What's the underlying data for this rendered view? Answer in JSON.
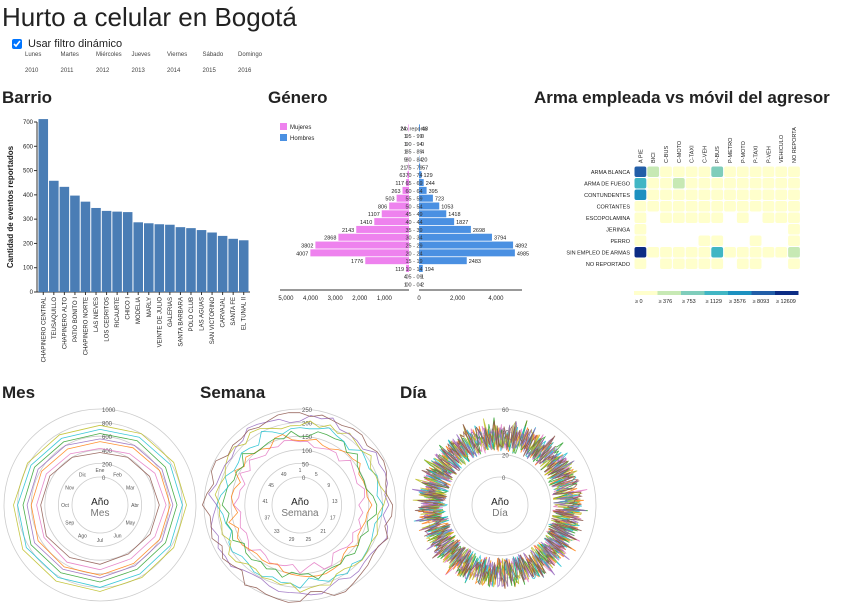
{
  "header": {
    "title": "Hurto a celular en Bogotá",
    "filter_label": "Usar filtro dinámico",
    "filter_checked": true,
    "days": [
      "Lunes",
      "Martes",
      "Miércoles",
      "Jueves",
      "Viernes",
      "Sábado",
      "Domingo"
    ],
    "years": [
      "2010",
      "2011",
      "2012",
      "2013",
      "2014",
      "2015",
      "2016"
    ]
  },
  "sections": {
    "barrio": "Barrio",
    "genero": "Género",
    "arma": "Arma empleada vs móvil del agresor",
    "mes": "Mes",
    "semana": "Semana",
    "dia": "Día"
  },
  "colors": {
    "bar": "#4a7db5",
    "women": "#ee82ee",
    "men": "#4a90e2"
  },
  "chart_data": [
    {
      "type": "bar",
      "id": "barrio",
      "ylabel": "Cantidad de eventos reportados",
      "ylim": [
        0,
        700
      ],
      "yticks": [
        0,
        100,
        200,
        300,
        400,
        500,
        600,
        700
      ],
      "categories": [
        "CHAPINERO CENTRAL",
        "TEUSAQUILLO",
        "CHAPINERO ALTO",
        "PATIO BONITO I",
        "CHAPINERO NORTE",
        "LAS NIEVES",
        "LOS CEDRITOS",
        "RICAURTE",
        "CHICO I",
        "MODELIA",
        "MARLY",
        "VEINTE DE JULIO",
        "GALERIAS",
        "SANTA BARBARA",
        "POLO CLUB",
        "LAS AGUAS",
        "SAN VICTORINO",
        "CARVAJAL",
        "SANTA FE",
        "EL TUNAL II"
      ],
      "values": [
        712,
        458,
        433,
        397,
        372,
        346,
        334,
        331,
        329,
        287,
        283,
        279,
        277,
        267,
        263,
        255,
        245,
        231,
        219,
        213
      ]
    },
    {
      "type": "bar",
      "id": "genero",
      "subtype": "population-pyramid",
      "legend": [
        "Mujeres",
        "Hombres"
      ],
      "age_groups": [
        "No reporta",
        "95 - 99",
        "90 - 94",
        "85 - 89",
        "80 - 84",
        "75 - 79",
        "70 - 74",
        "65 - 69",
        "60 - 64",
        "55 - 59",
        "50 - 54",
        "45 - 49",
        "40 - 44",
        "35 - 39",
        "30 - 34",
        "25 - 29",
        "20 - 24",
        "15 - 19",
        "10 - 14",
        "05 - 09",
        "00 - 04"
      ],
      "mujeres": [
        24,
        1,
        1,
        1,
        9,
        21,
        63,
        117,
        263,
        503,
        806,
        1107,
        1410,
        2143,
        2868,
        3802,
        4007,
        1776,
        119,
        4,
        1
      ],
      "hombres": [
        48,
        0,
        0,
        4,
        20,
        57,
        129,
        244,
        395,
        723,
        1053,
        1418,
        1827,
        2698,
        3794,
        4892,
        4985,
        2483,
        194,
        1,
        2
      ],
      "xticks_left": [
        "5,000",
        "4,000",
        "3,000",
        "2,000",
        "1,000"
      ],
      "xticks_right": [
        "0",
        "2,000",
        "4,000"
      ]
    },
    {
      "type": "heatmap",
      "id": "arma",
      "columns": [
        "A PIE",
        "BICI",
        "C-BUS",
        "C-MOTO",
        "C-TAXI",
        "C-VEH",
        "P-BUS",
        "P-METRO",
        "P-MOTO",
        "P-TAXI",
        "P-VEH",
        "VEHICULO",
        "NO REPORTA"
      ],
      "rows": [
        "ARMA BLANCA",
        "ARMA DE FUEGO",
        "CONTUNDENTES",
        "CORTANTES",
        "ESCOPOLAMINA",
        "JERINGA",
        "PERRO",
        "SIN EMPLEO DE ARMAS",
        "NO REPORTADO"
      ],
      "values": [
        [
          9000,
          600,
          100,
          100,
          100,
          100,
          800,
          100,
          100,
          100,
          100,
          100,
          100
        ],
        [
          3500,
          100,
          100,
          700,
          100,
          100,
          100,
          100,
          100,
          100,
          100,
          100,
          100
        ],
        [
          4000,
          100,
          100,
          100,
          100,
          100,
          100,
          100,
          100,
          100,
          100,
          100,
          100
        ],
        [
          100,
          100,
          100,
          100,
          100,
          100,
          100,
          100,
          100,
          100,
          100,
          100,
          100
        ],
        [
          100,
          0,
          100,
          100,
          100,
          100,
          100,
          0,
          100,
          0,
          100,
          100,
          100
        ],
        [
          100,
          0,
          0,
          0,
          0,
          0,
          0,
          0,
          0,
          0,
          0,
          0,
          100
        ],
        [
          100,
          0,
          0,
          0,
          0,
          100,
          100,
          0,
          0,
          100,
          0,
          0,
          100
        ],
        [
          12609,
          100,
          100,
          100,
          100,
          100,
          3500,
          100,
          100,
          100,
          100,
          100,
          600
        ],
        [
          100,
          0,
          100,
          100,
          100,
          100,
          100,
          0,
          100,
          100,
          0,
          0,
          100
        ]
      ],
      "legend": [
        "≥ 0",
        "≥ 376",
        "≥ 753",
        "≥ 1129",
        "≥ 3576",
        "≥ 8093",
        "≥ 12609"
      ]
    },
    {
      "type": "line",
      "id": "mes",
      "subtype": "radial",
      "rticks": [
        "0",
        "200",
        "400",
        "600",
        "800",
        "1000"
      ],
      "center": [
        "Año",
        "Mes"
      ],
      "angular": [
        "Ene",
        "Feb",
        "Mar",
        "Abr",
        "May",
        "Jun",
        "Jul",
        "Ago",
        "Sep",
        "Oct",
        "Nov",
        "Dic"
      ],
      "series_values": [
        [
          420,
          460,
          520,
          560,
          520,
          500,
          540,
          560,
          540,
          520,
          500,
          460
        ],
        [
          520,
          560,
          600,
          620,
          600,
          580,
          620,
          640,
          640,
          600,
          580,
          540
        ],
        [
          640,
          680,
          700,
          720,
          700,
          680,
          720,
          740,
          760,
          720,
          700,
          660
        ],
        [
          700,
          740,
          780,
          800,
          780,
          760,
          800,
          820,
          840,
          800,
          760,
          720
        ],
        [
          760,
          800,
          840,
          860,
          840,
          820,
          860,
          880,
          900,
          860,
          820,
          780
        ],
        [
          560,
          600,
          640,
          660,
          640,
          620,
          660,
          680,
          700,
          660,
          640,
          600
        ],
        [
          360,
          400,
          430,
          460,
          440,
          420,
          460,
          480,
          500,
          460,
          440,
          400
        ]
      ]
    },
    {
      "type": "line",
      "id": "semana",
      "subtype": "radial",
      "rticks": [
        "0",
        "50",
        "100",
        "150",
        "200",
        "250"
      ],
      "center": [
        "Año",
        "Semana"
      ],
      "points": 52
    },
    {
      "type": "line",
      "id": "dia",
      "subtype": "radial",
      "rticks": [
        "0",
        "20",
        "40",
        "60"
      ],
      "center": [
        "Año",
        "Día"
      ],
      "points": 365
    }
  ]
}
